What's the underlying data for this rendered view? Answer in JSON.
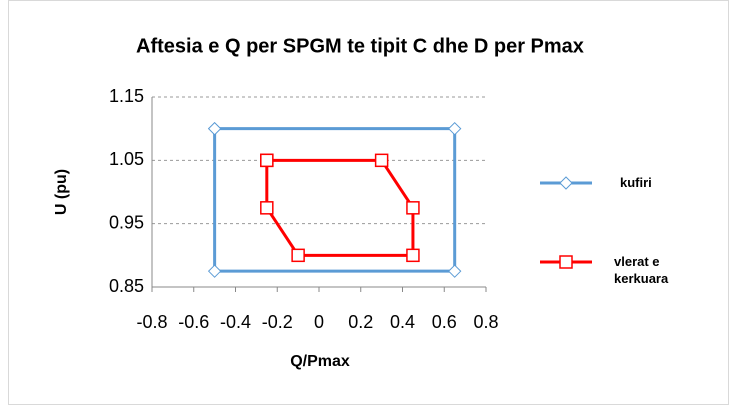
{
  "chart_data": {
    "type": "scatter",
    "title": "Aftesia e Q per SPGM te tipit C dhe D per Pmax",
    "x_label": "Q/Pmax",
    "y_label": "U (pu)",
    "xlim": [
      -0.8,
      0.8
    ],
    "xticks": [
      -0.8,
      -0.6,
      -0.4,
      -0.2,
      0,
      0.2,
      0.4,
      0.6,
      0.8
    ],
    "ylim": [
      0.85,
      1.15
    ],
    "yticks": [
      0.85,
      0.95,
      1.05,
      1.15
    ],
    "grid": true,
    "legend": "right",
    "series": [
      {
        "name": "kufiri",
        "color": "#5b9bd5",
        "marker": "diamond",
        "x": [
          -0.5,
          0.65,
          0.65,
          -0.5,
          -0.5
        ],
        "values": [
          1.1,
          1.1,
          0.875,
          0.875,
          1.1
        ]
      },
      {
        "name": "vlerat e kerkuara",
        "color": "#ff0000",
        "marker": "square",
        "x": [
          -0.25,
          0.3,
          0.45,
          0.45,
          -0.1,
          -0.25,
          -0.25
        ],
        "values": [
          1.05,
          1.05,
          0.975,
          0.9,
          0.9,
          0.975,
          1.05
        ]
      }
    ]
  }
}
